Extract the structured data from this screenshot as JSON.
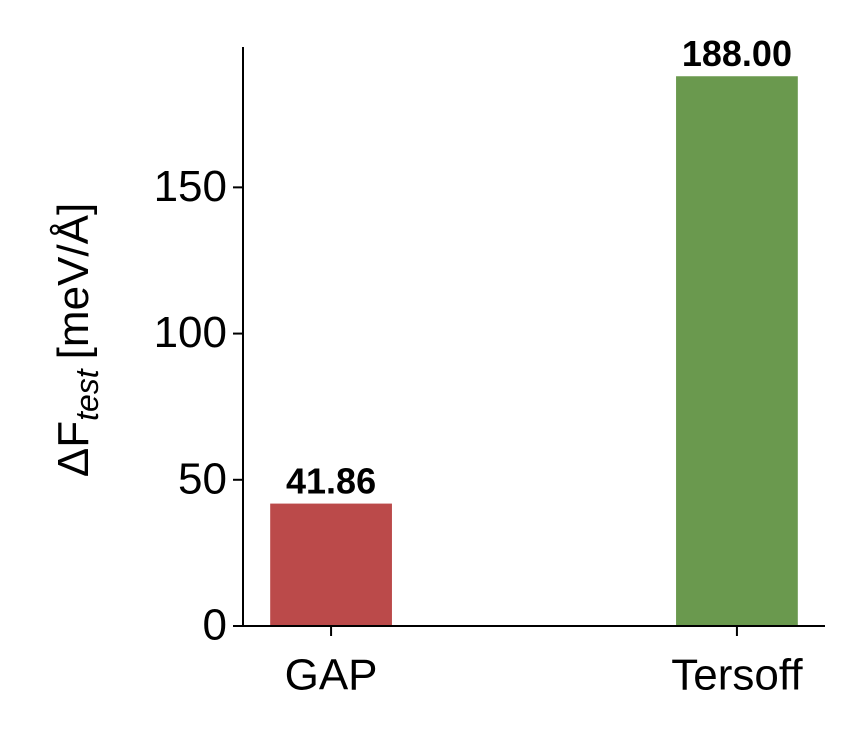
{
  "chart_data": {
    "type": "bar",
    "y_label": {
      "main": "ΔF",
      "subscript": "test",
      "unit": "[meV/Å]"
    },
    "categories": [
      "GAP",
      "Tersoff"
    ],
    "values": [
      41.86,
      188
    ],
    "value_labels": [
      "41.86",
      "188.00"
    ],
    "colors": [
      "#bb4a4a",
      "#6a994e"
    ],
    "ylim": [
      0,
      198
    ],
    "yticks": [
      0,
      50,
      100,
      150
    ]
  }
}
